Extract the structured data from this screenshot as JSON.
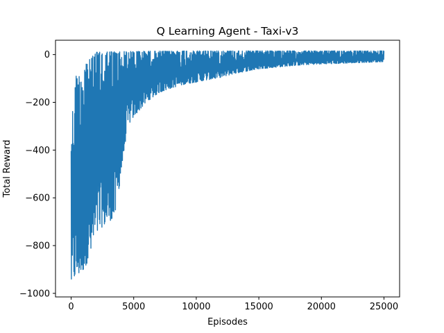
{
  "chart_data": {
    "type": "line",
    "title": "Q Learning Agent - Taxi-v3",
    "xlabel": "Episodes",
    "ylabel": "Total Reward",
    "xlim": [
      -1250,
      26250
    ],
    "ylim": [
      -1015,
      60
    ],
    "xticks": [
      0,
      5000,
      10000,
      15000,
      20000,
      25000
    ],
    "xtick_labels": [
      "0",
      "5000",
      "10000",
      "15000",
      "20000",
      "25000"
    ],
    "yticks": [
      -1000,
      -800,
      -600,
      -400,
      -200,
      0
    ],
    "ytick_labels": [
      "−1000",
      "−800",
      "−600",
      "−400",
      "−200",
      "0"
    ],
    "grid": false,
    "legend": "none",
    "color": "#1f77b4",
    "series": [
      {
        "x": [
          0,
          200,
          400,
          700,
          1000,
          1500,
          2000,
          2500,
          3000,
          3500,
          4000,
          4500,
          5000,
          6000,
          7000,
          8000,
          9000,
          10000,
          11000,
          12000,
          13000,
          14000,
          15000,
          16000,
          17000,
          18000,
          19000,
          20000,
          21000,
          22000,
          23000,
          24000,
          25000
        ],
        "upper": [
          -290,
          -200,
          -90,
          -90,
          -40,
          -20,
          10,
          10,
          12,
          12,
          12,
          13,
          13,
          14,
          14,
          14,
          15,
          15,
          15,
          15,
          15,
          15,
          15,
          15,
          15,
          15,
          15,
          15,
          15,
          15,
          15,
          15,
          15
        ],
        "lower": [
          -965,
          -940,
          -930,
          -920,
          -900,
          -850,
          -760,
          -720,
          -700,
          -680,
          -500,
          -300,
          -260,
          -200,
          -160,
          -140,
          -125,
          -115,
          -105,
          -95,
          -80,
          -70,
          -60,
          -55,
          -50,
          -45,
          -42,
          -40,
          -38,
          -36,
          -34,
          -32,
          -30
        ]
      }
    ]
  }
}
